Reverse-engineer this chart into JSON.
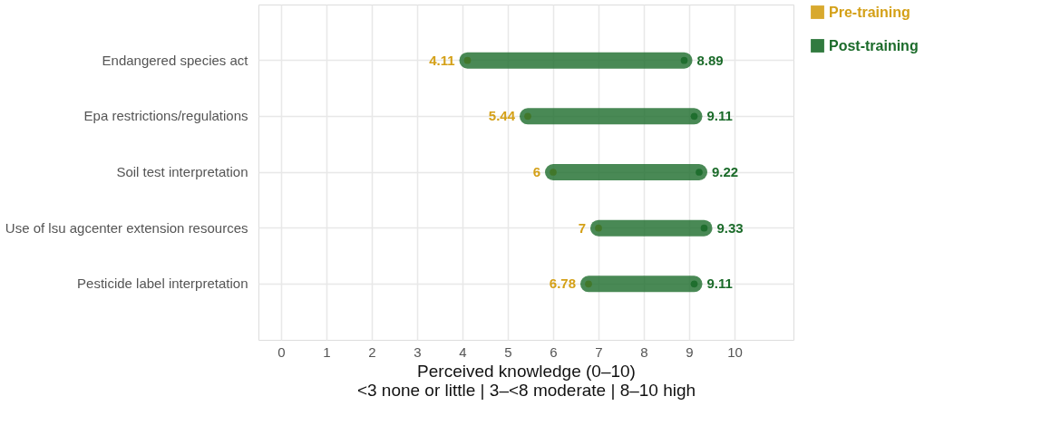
{
  "chart_data": {
    "type": "scatter",
    "orientation": "horizontal",
    "categories": [
      "Endangered species act",
      "Epa restrictions/regulations",
      "Soil test interpretation",
      "Use of lsu agcenter extension resources",
      "Pesticide label interpretation"
    ],
    "series": [
      {
        "name": "Pre-training",
        "color": "#d4a017",
        "values": [
          4.11,
          5.44,
          6,
          7,
          6.78
        ]
      },
      {
        "name": "Post-training",
        "color": "#1b6b2a",
        "values": [
          8.89,
          9.11,
          9.22,
          9.33,
          9.11
        ]
      }
    ],
    "xlabel": "Perceived knowledge (0–10)\n<3 none or little | 3–<8 moderate | 8–10 high",
    "xlim": [
      -0.5,
      11.3
    ],
    "xticks": [
      0,
      1,
      2,
      3,
      4,
      5,
      6,
      7,
      8,
      9,
      10
    ],
    "grid": true,
    "legend": "right",
    "data_labels": true,
    "marker": "circle"
  }
}
